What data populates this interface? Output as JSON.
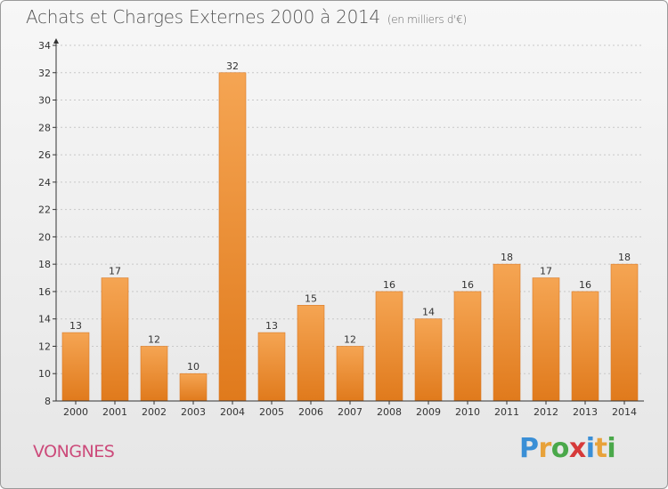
{
  "header": {
    "title": "Achats et Charges Externes 2000 à 2014",
    "subtitle": "(en milliers d'€)"
  },
  "footer": {
    "commune": "VONGNES",
    "logo": {
      "letters": [
        "P",
        "r",
        "o",
        "x",
        "i",
        "t",
        "i"
      ],
      "colors": [
        "#3a8fd6",
        "#e8a23a",
        "#4aa84a",
        "#d63a3a",
        "#3a8fd6",
        "#e8a23a",
        "#4aa84a"
      ]
    }
  },
  "colors": {
    "bar_top": "#f5a553",
    "bar_bottom": "#e07a1c",
    "bar_edge": "#d97a28",
    "axis": "#333333",
    "grid": "#c8c8c8"
  },
  "chart_data": {
    "type": "bar",
    "title": "Achats et Charges Externes 2000 à 2014",
    "subtitle": "(en milliers d'€)",
    "categories": [
      "2000",
      "2001",
      "2002",
      "2003",
      "2004",
      "2005",
      "2006",
      "2007",
      "2008",
      "2009",
      "2010",
      "2011",
      "2012",
      "2013",
      "2014"
    ],
    "values": [
      13,
      17,
      12,
      10,
      32,
      13,
      15,
      12,
      16,
      14,
      16,
      18,
      17,
      16,
      18
    ],
    "ylim": [
      8,
      34
    ],
    "yticks": [
      8,
      10,
      12,
      14,
      16,
      18,
      20,
      22,
      24,
      26,
      28,
      30,
      32,
      34
    ],
    "xlabel": "",
    "ylabel": "",
    "grid": true,
    "data_labels": true
  }
}
